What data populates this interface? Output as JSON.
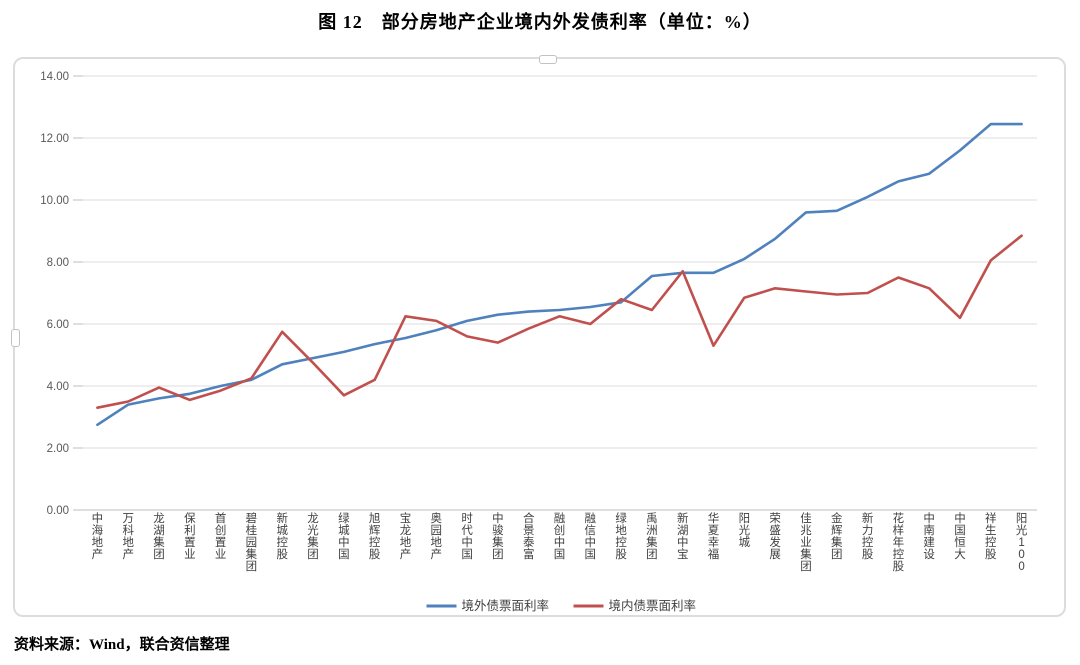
{
  "title": "图 12　部分房地产企业境内外发债利率（单位：%）",
  "source_note": "资料来源：Wind，联合资信整理",
  "colors": {
    "overseas_line": "#4f81bd",
    "domestic_line": "#c0504d",
    "gridline": "#dcdcdc",
    "axis_line": "#bfbfbf",
    "tick_label": "#595959",
    "category_label": "#404040",
    "legend_text": "#404040",
    "frame_border": "#dcdcdc"
  },
  "chart_data": {
    "type": "line",
    "title": "图 12　部分房地产企业境内外发债利率（单位：%）",
    "xlabel": "",
    "ylabel": "",
    "ylim": [
      0,
      14
    ],
    "y_tick_step": 2,
    "y_ticks": [
      "0.00",
      "2.00",
      "4.00",
      "6.00",
      "8.00",
      "10.00",
      "12.00",
      "14.00"
    ],
    "grid": true,
    "legend_position": "bottom",
    "categories": [
      "中海地产",
      "万科地产",
      "龙湖集团",
      "保利置业",
      "首创置业",
      "碧桂园集团",
      "新城控股",
      "龙光集团",
      "绿城中国",
      "旭辉控股",
      "宝龙地产",
      "奥园地产",
      "时代中国",
      "中骏集团",
      "合景泰富",
      "融创中国",
      "融信中国",
      "绿地控股",
      "禹洲集团",
      "新湖中宝",
      "华夏幸福",
      "阳光城",
      "荣盛发展",
      "佳兆业集团",
      "金辉集团",
      "新力控股",
      "花样年控股",
      "中南建设",
      "中国恒大",
      "祥生控股",
      "阳光100"
    ],
    "series": [
      {
        "name": "境外债票面利率",
        "color": "#4f81bd",
        "values": [
          2.75,
          3.4,
          3.6,
          3.75,
          4.0,
          4.2,
          4.7,
          4.9,
          5.1,
          5.35,
          5.55,
          5.8,
          6.1,
          6.3,
          6.4,
          6.45,
          6.55,
          6.7,
          7.55,
          7.65,
          7.65,
          8.1,
          8.75,
          9.6,
          9.65,
          10.1,
          10.6,
          10.85,
          11.6,
          12.45,
          12.45
        ]
      },
      {
        "name": "境内债票面利率",
        "color": "#c0504d",
        "values": [
          3.3,
          3.5,
          3.95,
          3.55,
          3.85,
          4.25,
          5.75,
          4.75,
          3.7,
          4.2,
          6.25,
          6.1,
          5.6,
          5.4,
          5.85,
          6.25,
          6.0,
          6.8,
          6.45,
          7.7,
          5.3,
          6.85,
          7.15,
          7.05,
          6.95,
          7.0,
          7.5,
          7.15,
          6.2,
          8.05,
          8.85
        ]
      }
    ]
  }
}
